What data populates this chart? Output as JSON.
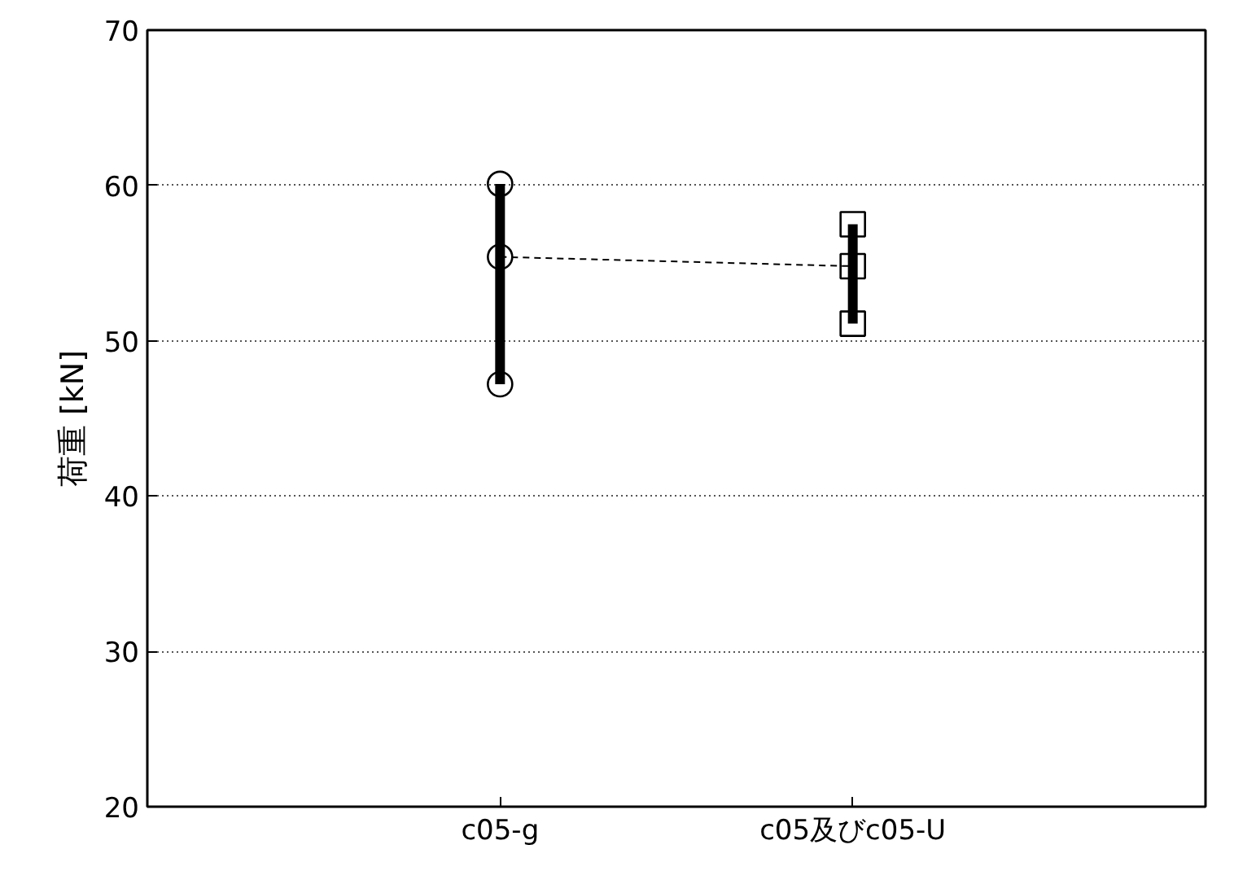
{
  "chart_data": {
    "type": "scatter",
    "ylabel": "荷重 [kN]",
    "categories": [
      "c05-g",
      "c05及びc05-U"
    ],
    "ylim": [
      20,
      70
    ],
    "yticks": [
      20,
      30,
      40,
      50,
      60,
      70
    ],
    "grid": "y",
    "series": [
      {
        "type": "line",
        "color": "#000000",
        "values": [
          55.4,
          54.8
        ],
        "errors": [
          [
            47.2,
            60.1
          ],
          [
            51.1,
            57.5
          ]
        ],
        "line_style": "dashed",
        "marker": "none"
      },
      {
        "color": "#000000",
        "x": [
          "c05-g",
          "c05-g",
          "c05-g"
        ],
        "values": [
          47.2,
          55.4,
          60.1
        ],
        "marker": "circle"
      },
      {
        "color": "#000000",
        "x": [
          "c05及びc05-U",
          "c05及びc05-U",
          "c05及びc05-U"
        ],
        "values": [
          51.1,
          54.8,
          57.5
        ],
        "marker": "square"
      }
    ]
  }
}
